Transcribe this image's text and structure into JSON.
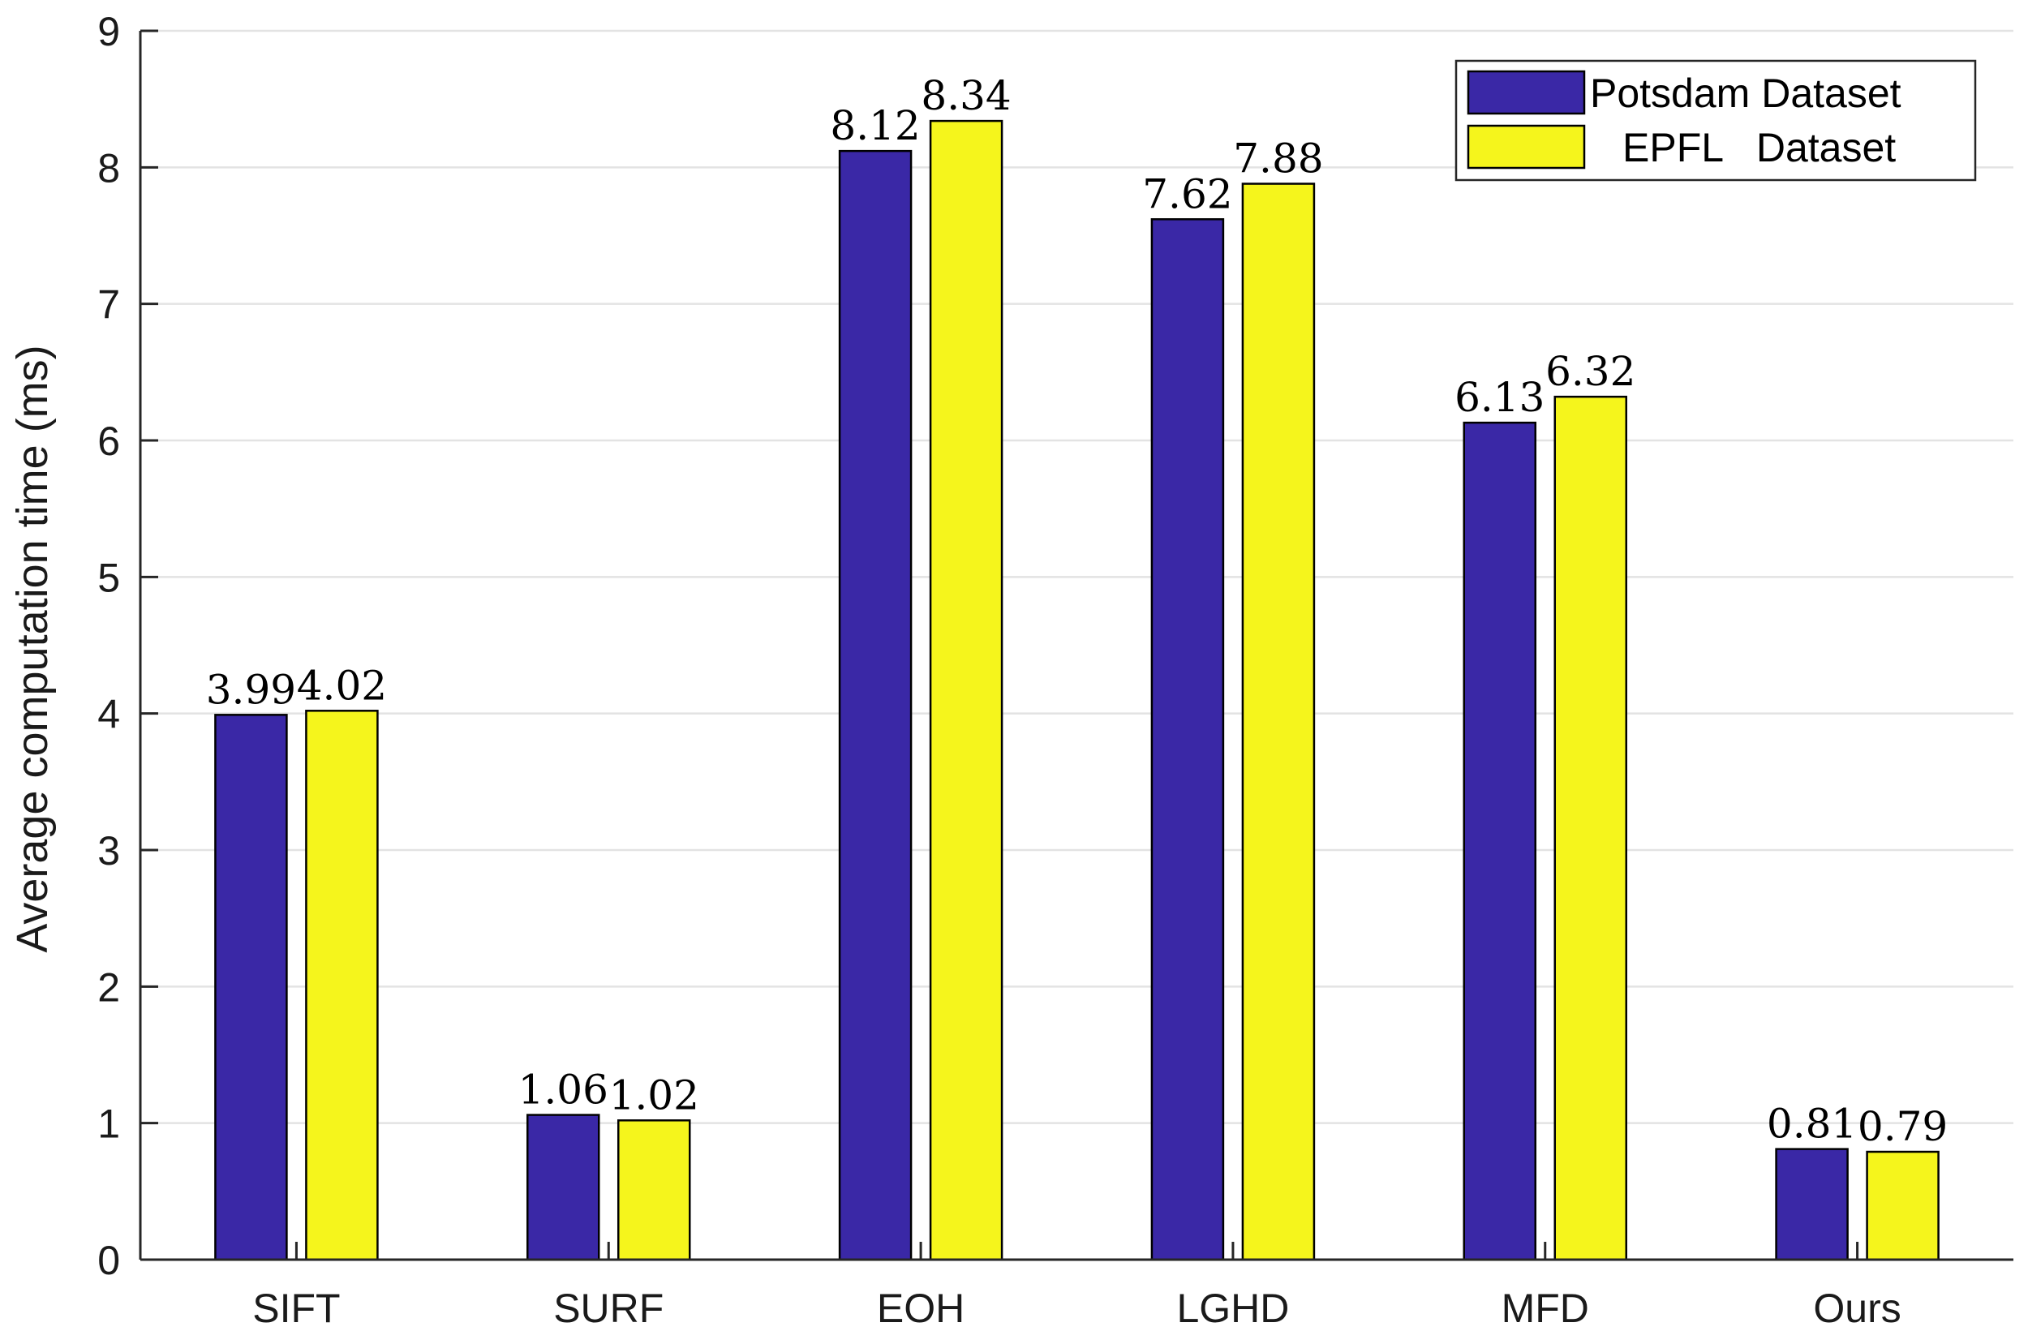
{
  "chart_data": {
    "type": "bar",
    "title": "",
    "xlabel": "",
    "ylabel": "Average computation time (ms)",
    "categories": [
      "SIFT",
      "SURF",
      "EOH",
      "LGHD",
      "MFD",
      "Ours"
    ],
    "series": [
      {
        "name": "Potsdam Dataset",
        "color": "#3a28a6",
        "values": [
          3.99,
          1.06,
          8.12,
          7.62,
          6.13,
          0.81
        ],
        "labels": [
          "3.99",
          "1.06",
          "8.12",
          "7.62",
          "6.13",
          "0.81"
        ]
      },
      {
        "name": "EPFL   Dataset",
        "color": "#f5f51c",
        "values": [
          4.02,
          1.02,
          8.34,
          7.88,
          6.32,
          0.79
        ],
        "labels": [
          "4.02",
          "1.02",
          "8.34",
          "7.88",
          "6.32",
          "0.79"
        ]
      }
    ],
    "ylim": [
      0,
      9
    ],
    "yticks": [
      0,
      1,
      2,
      3,
      4,
      5,
      6,
      7,
      8,
      9
    ],
    "ytick_labels": [
      "0",
      "1",
      "2",
      "3",
      "4",
      "5",
      "6",
      "7",
      "8",
      "9"
    ],
    "grid": true,
    "legend_position": "top-right"
  }
}
